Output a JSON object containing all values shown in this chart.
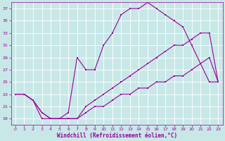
{
  "background_color": "#c8e8e8",
  "grid_color": "#ffffff",
  "line_color": "#990099",
  "xlabel": "Windchill (Refroidissement éolien,°C)",
  "xlabel_color": "#990099",
  "tick_color": "#990099",
  "xlim": [
    -0.5,
    23.5
  ],
  "ylim": [
    18,
    38
  ],
  "yticks": [
    19,
    21,
    23,
    25,
    27,
    29,
    31,
    33,
    35,
    37
  ],
  "xticks": [
    0,
    1,
    2,
    3,
    4,
    5,
    6,
    7,
    8,
    9,
    10,
    11,
    12,
    13,
    14,
    15,
    16,
    17,
    18,
    19,
    20,
    21,
    22,
    23
  ],
  "line_top_x": [
    0,
    1,
    2,
    3,
    4,
    5,
    6,
    7,
    8,
    9,
    10,
    11,
    12,
    13,
    14,
    15,
    16,
    17,
    18,
    19,
    20,
    21,
    22,
    23
  ],
  "line_top_y": [
    23,
    23,
    22,
    19,
    19,
    19,
    20,
    29,
    27,
    27,
    31,
    33,
    36,
    37,
    37,
    38,
    37,
    36,
    35,
    34,
    31,
    28,
    25,
    25
  ],
  "line_mid_x": [
    0,
    1,
    2,
    3,
    4,
    5,
    6,
    7,
    8,
    9,
    10,
    11,
    12,
    13,
    14,
    15,
    16,
    17,
    18,
    19,
    20,
    21,
    22,
    23
  ],
  "line_mid_y": [
    23,
    23,
    22,
    20,
    19,
    19,
    19,
    19,
    21,
    22,
    23,
    24,
    25,
    26,
    27,
    28,
    29,
    30,
    31,
    31,
    32,
    33,
    33,
    25
  ],
  "line_bot_x": [
    0,
    1,
    2,
    3,
    4,
    5,
    6,
    7,
    8,
    9,
    10,
    11,
    12,
    13,
    14,
    15,
    16,
    17,
    18,
    19,
    20,
    21,
    22,
    23
  ],
  "line_bot_y": [
    23,
    23,
    22,
    20,
    19,
    19,
    19,
    19,
    20,
    21,
    21,
    22,
    23,
    23,
    24,
    24,
    25,
    25,
    26,
    26,
    27,
    28,
    29,
    25
  ],
  "marker_size": 2.0,
  "line_width": 0.8,
  "tick_fontsize": 4.5,
  "xlabel_fontsize": 5.5
}
